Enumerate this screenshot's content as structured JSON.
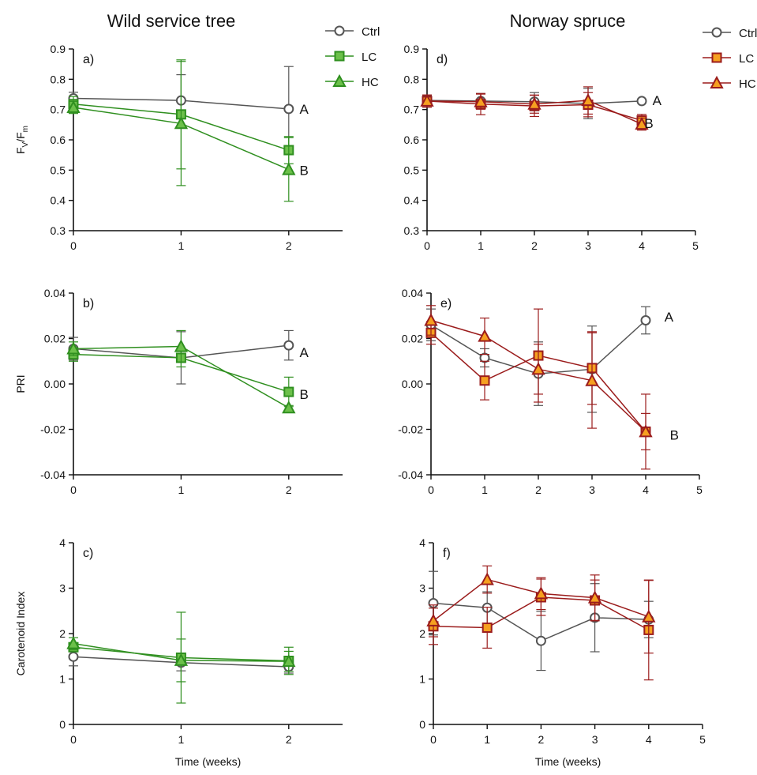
{
  "column_titles": {
    "left": "Wild service tree",
    "right": "Norway spruce"
  },
  "legend_left": [
    {
      "label": "Ctrl",
      "color": "#555555",
      "fill": "#ffffff",
      "marker": "circle"
    },
    {
      "label": "LC",
      "color": "#2f8f1f",
      "fill": "#6cc04a",
      "marker": "square"
    },
    {
      "label": "HC",
      "color": "#2f8f1f",
      "fill": "#6cc04a",
      "marker": "triangle"
    }
  ],
  "legend_right": [
    {
      "label": "Ctrl",
      "color": "#555555",
      "fill": "#ffffff",
      "marker": "circle"
    },
    {
      "label": "LC",
      "color": "#9b1c1c",
      "fill": "#f6a020",
      "marker": "square"
    },
    {
      "label": "HC",
      "color": "#9b1c1c",
      "fill": "#f6a020",
      "marker": "triangle"
    }
  ],
  "chart_data": [
    {
      "panel": "a)",
      "type": "line",
      "ylabel": "FV/Fm",
      "xlabel": "",
      "xlim": [
        0,
        2.5
      ],
      "xticks": [
        "0",
        "1",
        "2"
      ],
      "ylim": [
        0.3,
        0.9
      ],
      "yticks": [
        "0.3",
        "0.4",
        "0.5",
        "0.6",
        "0.7",
        "0.8",
        "0.9"
      ],
      "series": [
        {
          "name": "Ctrl",
          "x": [
            0,
            1,
            2
          ],
          "y": [
            0.737,
            0.73,
            0.702
          ],
          "err": [
            0.02,
            0.085,
            0.14
          ]
        },
        {
          "name": "LC",
          "x": [
            0,
            1,
            2
          ],
          "y": [
            0.718,
            0.684,
            0.566
          ],
          "err": [
            0.025,
            0.18,
            0.045
          ]
        },
        {
          "name": "HC",
          "x": [
            0,
            1,
            2
          ],
          "y": [
            0.707,
            0.654,
            0.502
          ],
          "err": [
            0.02,
            0.205,
            0.105
          ]
        }
      ],
      "annotations": [
        {
          "text": "A",
          "x": 2.1,
          "y": 0.702
        },
        {
          "text": "B",
          "x": 2.1,
          "y": 0.5
        }
      ]
    },
    {
      "panel": "b)",
      "type": "line",
      "ylabel": "PRI",
      "xlabel": "",
      "xlim": [
        0,
        2.5
      ],
      "xticks": [
        "0",
        "1",
        "2"
      ],
      "ylim": [
        -0.04,
        0.04
      ],
      "yticks": [
        "-0.04",
        "-0.02",
        "0.00",
        "0.02",
        "0.04"
      ],
      "series": [
        {
          "name": "Ctrl",
          "x": [
            0,
            1,
            2
          ],
          "y": [
            0.0155,
            0.0115,
            0.017
          ],
          "err": [
            0.005,
            0.0115,
            0.0065
          ]
        },
        {
          "name": "LC",
          "x": [
            0,
            1,
            2
          ],
          "y": [
            0.013,
            0.0115,
            -0.0035
          ],
          "err": [
            0.003,
            0.004,
            0.0065
          ]
        },
        {
          "name": "HC",
          "x": [
            0,
            1,
            2
          ],
          "y": [
            0.0155,
            0.0165,
            -0.0105
          ],
          "err": [
            0.003,
            0.007,
            0.001
          ]
        }
      ],
      "annotations": [
        {
          "text": "A",
          "x": 2.1,
          "y": 0.014
        },
        {
          "text": "B",
          "x": 2.1,
          "y": -0.0045
        }
      ]
    },
    {
      "panel": "c)",
      "type": "line",
      "ylabel": "Carotenoid Index",
      "xlabel": "Time (weeks)",
      "xlim": [
        0,
        2.5
      ],
      "xticks": [
        "0",
        "1",
        "2"
      ],
      "ylim": [
        0,
        4
      ],
      "yticks": [
        "0",
        "1",
        "2",
        "3",
        "4"
      ],
      "series": [
        {
          "name": "Ctrl",
          "x": [
            0,
            1,
            2
          ],
          "y": [
            1.49,
            1.36,
            1.27
          ],
          "err": [
            0.2,
            0.18,
            0.14
          ]
        },
        {
          "name": "LC",
          "x": [
            0,
            1,
            2
          ],
          "y": [
            1.7,
            1.47,
            1.4
          ],
          "err": [
            0.1,
            1.0,
            0.3
          ]
        },
        {
          "name": "HC",
          "x": [
            0,
            1,
            2
          ],
          "y": [
            1.78,
            1.41,
            1.39
          ],
          "err": [
            0.13,
            0.47,
            0.22
          ]
        }
      ],
      "annotations": []
    },
    {
      "panel": "d)",
      "type": "line",
      "ylabel": "",
      "xlabel": "",
      "xlim": [
        0,
        5
      ],
      "xticks": [
        "0",
        "1",
        "2",
        "3",
        "4",
        "5"
      ],
      "ylim": [
        0.3,
        0.9
      ],
      "yticks": [
        "0.3",
        "0.4",
        "0.5",
        "0.6",
        "0.7",
        "0.8",
        "0.9"
      ],
      "series": [
        {
          "name": "Ctrl",
          "x": [
            0,
            1,
            2,
            3,
            4
          ],
          "y": [
            0.73,
            0.728,
            0.726,
            0.72,
            0.728
          ],
          "err": [
            0.015,
            0.025,
            0.03,
            0.05,
            0.006
          ]
        },
        {
          "name": "LC",
          "x": [
            0,
            1,
            2,
            3,
            4
          ],
          "y": [
            0.728,
            0.718,
            0.712,
            0.716,
            0.664
          ],
          "err": [
            0.02,
            0.035,
            0.035,
            0.04,
            0.02
          ]
        },
        {
          "name": "HC",
          "x": [
            0,
            1,
            2,
            3,
            4
          ],
          "y": [
            0.728,
            0.726,
            0.718,
            0.73,
            0.652
          ],
          "err": [
            0.02,
            0.025,
            0.03,
            0.045,
            0.02
          ]
        }
      ],
      "annotations": [
        {
          "text": "A",
          "x": 4.2,
          "y": 0.73
        },
        {
          "text": "B",
          "x": 4.05,
          "y": 0.655
        }
      ]
    },
    {
      "panel": "e)",
      "type": "line",
      "ylabel": "",
      "xlabel": "",
      "xlim": [
        0,
        5
      ],
      "xticks": [
        "0",
        "1",
        "2",
        "3",
        "4",
        "5"
      ],
      "ylim": [
        -0.04,
        0.04
      ],
      "yticks": [
        "-0.04",
        "-0.02",
        "0.00",
        "0.02",
        "0.04"
      ],
      "series": [
        {
          "name": "Ctrl",
          "x": [
            0,
            1,
            2,
            3,
            4
          ],
          "y": [
            0.026,
            0.0115,
            0.0045,
            0.0065,
            0.028
          ],
          "err": [
            0.007,
            0.004,
            0.014,
            0.019,
            0.006
          ]
        },
        {
          "name": "LC",
          "x": [
            0,
            1,
            2,
            3,
            4
          ],
          "y": [
            0.0225,
            0.0015,
            0.0125,
            0.007,
            -0.021
          ],
          "err": [
            0.005,
            0.0085,
            0.0205,
            0.016,
            0.0165
          ]
        },
        {
          "name": "HC",
          "x": [
            0,
            1,
            2,
            3,
            4
          ],
          "y": [
            0.028,
            0.021,
            0.0065,
            0.0015,
            -0.021
          ],
          "err": [
            0.0065,
            0.008,
            0.011,
            0.021,
            0.008
          ]
        }
      ],
      "annotations": [
        {
          "text": "A",
          "x": 4.35,
          "y": 0.0295
        },
        {
          "text": "B",
          "x": 4.45,
          "y": -0.0225
        }
      ]
    },
    {
      "panel": "f)",
      "type": "line",
      "ylabel": "",
      "xlabel": "Time (weeks)",
      "xlim": [
        0,
        5
      ],
      "xticks": [
        "0",
        "1",
        "2",
        "3",
        "4",
        "5"
      ],
      "ylim": [
        0,
        4
      ],
      "yticks": [
        "0",
        "1",
        "2",
        "3",
        "4"
      ],
      "series": [
        {
          "name": "Ctrl",
          "x": [
            0,
            1,
            2,
            3,
            4
          ],
          "y": [
            2.67,
            2.57,
            1.84,
            2.35,
            2.31
          ],
          "err": [
            0.7,
            0.35,
            0.65,
            0.75,
            0.4
          ]
        },
        {
          "name": "LC",
          "x": [
            0,
            1,
            2,
            3,
            4
          ],
          "y": [
            2.16,
            2.13,
            2.8,
            2.73,
            2.08
          ],
          "err": [
            0.4,
            0.45,
            0.4,
            0.45,
            1.1
          ]
        },
        {
          "name": "HC",
          "x": [
            0,
            1,
            2,
            3,
            4
          ],
          "y": [
            2.28,
            3.19,
            2.88,
            2.79,
            2.37
          ],
          "err": [
            0.35,
            0.3,
            0.35,
            0.5,
            0.8
          ]
        }
      ],
      "annotations": []
    }
  ]
}
